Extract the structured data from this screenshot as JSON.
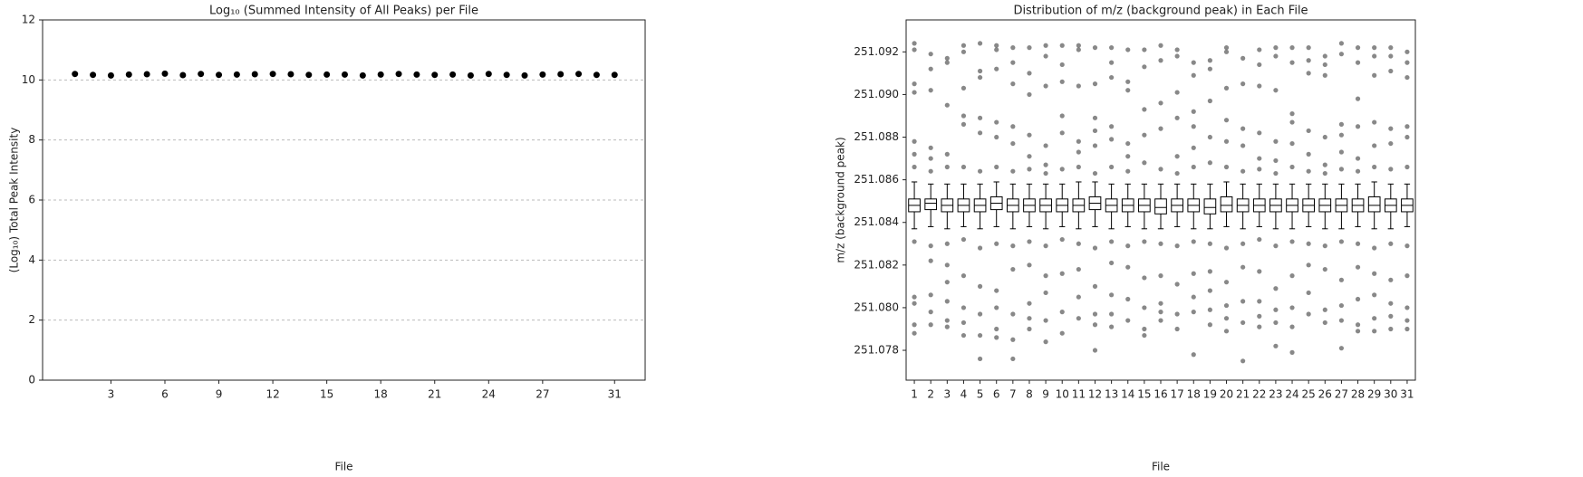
{
  "chart_data": [
    {
      "type": "scatter",
      "title": "Log₁₀ (Summed Intensity of All Peaks) per File",
      "xlabel": "File",
      "ylabel": "(Log₁₀) Total Peak Intensity",
      "x": [
        1,
        2,
        3,
        4,
        5,
        6,
        7,
        8,
        9,
        10,
        11,
        12,
        13,
        14,
        15,
        16,
        17,
        18,
        19,
        20,
        21,
        22,
        23,
        24,
        25,
        26,
        27,
        28,
        29,
        30,
        31
      ],
      "values": [
        10.2,
        10.17,
        10.15,
        10.18,
        10.19,
        10.21,
        10.16,
        10.2,
        10.17,
        10.18,
        10.19,
        10.2,
        10.19,
        10.17,
        10.18,
        10.18,
        10.15,
        10.18,
        10.2,
        10.18,
        10.17,
        10.18,
        10.15,
        10.2,
        10.17,
        10.15,
        10.18,
        10.19,
        10.2,
        10.17,
        10.17
      ],
      "color": "#000000",
      "xlim": [
        -0.8,
        32.7
      ],
      "ylim": [
        0,
        12
      ],
      "xticks": [
        3,
        6,
        9,
        12,
        15,
        18,
        21,
        24,
        27,
        31
      ],
      "yticks": [
        0,
        2,
        4,
        6,
        8,
        10,
        12
      ],
      "grid": true
    },
    {
      "type": "box",
      "title": "Distribution of m/z (background peak) in Each File",
      "xlabel": "File",
      "ylabel": "m/z (background peak)",
      "categories": [
        "1",
        "2",
        "3",
        "4",
        "5",
        "6",
        "7",
        "8",
        "9",
        "10",
        "11",
        "12",
        "13",
        "14",
        "15",
        "16",
        "17",
        "18",
        "19",
        "20",
        "21",
        "22",
        "23",
        "24",
        "25",
        "26",
        "27",
        "28",
        "29",
        "30",
        "31"
      ],
      "ylim": [
        251.0766,
        251.0935
      ],
      "yticks": [
        251.078,
        {
          "value": 251.08,
          "label": "251.080"
        },
        251.082,
        251.084,
        251.086,
        251.088,
        {
          "value": 251.09,
          "label": "251.090"
        },
        251.092
      ],
      "color": "#555555",
      "boxes": [
        {
          "median": 251.0848,
          "q1": 251.0845,
          "q3": 251.0851,
          "whislo": 251.0837,
          "whishi": 251.0859,
          "fliers": [
            251.0924,
            251.0921,
            251.0905,
            251.0901,
            251.0878,
            251.0872,
            251.0866,
            251.0831,
            251.0805,
            251.0802,
            251.0792,
            251.0788
          ]
        },
        {
          "median": 251.0849,
          "q1": 251.0846,
          "q3": 251.0851,
          "whislo": 251.0838,
          "whishi": 251.0858,
          "fliers": [
            251.0919,
            251.0912,
            251.0902,
            251.0875,
            251.087,
            251.0864,
            251.0829,
            251.0822,
            251.0806,
            251.0798,
            251.0792
          ]
        },
        {
          "median": 251.0848,
          "q1": 251.0845,
          "q3": 251.0851,
          "whislo": 251.0837,
          "whishi": 251.0858,
          "fliers": [
            251.0917,
            251.0915,
            251.0895,
            251.0872,
            251.0866,
            251.083,
            251.082,
            251.0812,
            251.0803,
            251.0794,
            251.0791
          ]
        },
        {
          "median": 251.0848,
          "q1": 251.0845,
          "q3": 251.0851,
          "whislo": 251.0838,
          "whishi": 251.0858,
          "fliers": [
            251.0923,
            251.092,
            251.0903,
            251.089,
            251.0886,
            251.0866,
            251.0832,
            251.0815,
            251.08,
            251.0793,
            251.0787
          ]
        },
        {
          "median": 251.0848,
          "q1": 251.0845,
          "q3": 251.0851,
          "whislo": 251.0837,
          "whishi": 251.0858,
          "fliers": [
            251.0924,
            251.0911,
            251.0908,
            251.0889,
            251.0882,
            251.0864,
            251.0828,
            251.081,
            251.0797,
            251.0787,
            251.0776
          ]
        },
        {
          "median": 251.0849,
          "q1": 251.0846,
          "q3": 251.0852,
          "whislo": 251.0838,
          "whishi": 251.0859,
          "fliers": [
            251.0923,
            251.0921,
            251.0912,
            251.0887,
            251.088,
            251.0866,
            251.083,
            251.0808,
            251.08,
            251.079,
            251.0786
          ]
        },
        {
          "median": 251.0848,
          "q1": 251.0845,
          "q3": 251.0851,
          "whislo": 251.0837,
          "whishi": 251.0858,
          "fliers": [
            251.0922,
            251.0915,
            251.0905,
            251.0885,
            251.0877,
            251.0864,
            251.0829,
            251.0818,
            251.0797,
            251.0785,
            251.0776
          ]
        },
        {
          "median": 251.0848,
          "q1": 251.0845,
          "q3": 251.0851,
          "whislo": 251.0838,
          "whishi": 251.0858,
          "fliers": [
            251.0922,
            251.091,
            251.09,
            251.0881,
            251.0871,
            251.0865,
            251.0831,
            251.082,
            251.0802,
            251.0795,
            251.079
          ]
        },
        {
          "median": 251.0848,
          "q1": 251.0845,
          "q3": 251.0851,
          "whislo": 251.0837,
          "whishi": 251.0858,
          "fliers": [
            251.0923,
            251.0918,
            251.0904,
            251.0876,
            251.0867,
            251.0863,
            251.0829,
            251.0815,
            251.0807,
            251.0794,
            251.0784
          ]
        },
        {
          "median": 251.0848,
          "q1": 251.0845,
          "q3": 251.0851,
          "whislo": 251.0838,
          "whishi": 251.0858,
          "fliers": [
            251.0923,
            251.0914,
            251.0906,
            251.089,
            251.0882,
            251.0865,
            251.0832,
            251.0816,
            251.0798,
            251.0788
          ]
        },
        {
          "median": 251.0848,
          "q1": 251.0845,
          "q3": 251.0851,
          "whislo": 251.0837,
          "whishi": 251.0859,
          "fliers": [
            251.0923,
            251.0921,
            251.0904,
            251.0878,
            251.0873,
            251.0866,
            251.083,
            251.0818,
            251.0805,
            251.0795
          ]
        },
        {
          "median": 251.0849,
          "q1": 251.0846,
          "q3": 251.0852,
          "whislo": 251.0838,
          "whishi": 251.0859,
          "fliers": [
            251.0922,
            251.0905,
            251.0889,
            251.0883,
            251.0876,
            251.0863,
            251.0828,
            251.081,
            251.0797,
            251.0792,
            251.078
          ]
        },
        {
          "median": 251.0848,
          "q1": 251.0845,
          "q3": 251.0851,
          "whislo": 251.0837,
          "whishi": 251.0858,
          "fliers": [
            251.0922,
            251.0915,
            251.0908,
            251.0885,
            251.0879,
            251.0866,
            251.0831,
            251.0821,
            251.0806,
            251.0797,
            251.0791
          ]
        },
        {
          "median": 251.0848,
          "q1": 251.0845,
          "q3": 251.0851,
          "whislo": 251.0838,
          "whishi": 251.0858,
          "fliers": [
            251.0921,
            251.0906,
            251.0902,
            251.0877,
            251.0871,
            251.0864,
            251.0829,
            251.0819,
            251.0804,
            251.0794
          ]
        },
        {
          "median": 251.0848,
          "q1": 251.0845,
          "q3": 251.0851,
          "whislo": 251.0837,
          "whishi": 251.0858,
          "fliers": [
            251.0921,
            251.0913,
            251.0893,
            251.0881,
            251.0868,
            251.0831,
            251.0814,
            251.08,
            251.079,
            251.0787
          ]
        },
        {
          "median": 251.0847,
          "q1": 251.0844,
          "q3": 251.0851,
          "whislo": 251.0837,
          "whishi": 251.0858,
          "fliers": [
            251.0923,
            251.0916,
            251.0896,
            251.0884,
            251.0865,
            251.083,
            251.0815,
            251.0802,
            251.0798,
            251.0794
          ]
        },
        {
          "median": 251.0848,
          "q1": 251.0845,
          "q3": 251.0851,
          "whislo": 251.0838,
          "whishi": 251.0858,
          "fliers": [
            251.0921,
            251.0918,
            251.0901,
            251.0889,
            251.0871,
            251.0863,
            251.0829,
            251.0811,
            251.0797,
            251.079
          ]
        },
        {
          "median": 251.0848,
          "q1": 251.0845,
          "q3": 251.0851,
          "whislo": 251.0837,
          "whishi": 251.0858,
          "fliers": [
            251.0915,
            251.0909,
            251.0892,
            251.0885,
            251.0875,
            251.0866,
            251.0831,
            251.0816,
            251.0805,
            251.0798,
            251.0778
          ]
        },
        {
          "median": 251.0847,
          "q1": 251.0844,
          "q3": 251.0851,
          "whislo": 251.0837,
          "whishi": 251.0858,
          "fliers": [
            251.0916,
            251.0912,
            251.0897,
            251.088,
            251.0868,
            251.083,
            251.0817,
            251.0808,
            251.0799,
            251.0792
          ]
        },
        {
          "median": 251.0848,
          "q1": 251.0845,
          "q3": 251.0852,
          "whislo": 251.0838,
          "whishi": 251.0859,
          "fliers": [
            251.0922,
            251.092,
            251.0903,
            251.0888,
            251.0878,
            251.0866,
            251.0828,
            251.0812,
            251.0801,
            251.0795,
            251.0789
          ]
        },
        {
          "median": 251.0848,
          "q1": 251.0845,
          "q3": 251.0851,
          "whislo": 251.0837,
          "whishi": 251.0858,
          "fliers": [
            251.0917,
            251.0905,
            251.0884,
            251.0876,
            251.0864,
            251.083,
            251.0819,
            251.0803,
            251.0793,
            251.0775
          ]
        },
        {
          "median": 251.0848,
          "q1": 251.0845,
          "q3": 251.0851,
          "whislo": 251.0838,
          "whishi": 251.0858,
          "fliers": [
            251.0921,
            251.0914,
            251.0904,
            251.0882,
            251.087,
            251.0865,
            251.0832,
            251.0817,
            251.0803,
            251.0796,
            251.0791
          ]
        },
        {
          "median": 251.0848,
          "q1": 251.0845,
          "q3": 251.0851,
          "whislo": 251.0837,
          "whishi": 251.0858,
          "fliers": [
            251.0922,
            251.0918,
            251.0902,
            251.0878,
            251.0869,
            251.0863,
            251.0829,
            251.0809,
            251.0799,
            251.0793,
            251.0782
          ]
        },
        {
          "median": 251.0848,
          "q1": 251.0845,
          "q3": 251.0851,
          "whislo": 251.0837,
          "whishi": 251.0858,
          "fliers": [
            251.0922,
            251.0915,
            251.0891,
            251.0887,
            251.0877,
            251.0866,
            251.0831,
            251.0815,
            251.08,
            251.0791,
            251.0779
          ]
        },
        {
          "median": 251.0848,
          "q1": 251.0845,
          "q3": 251.0851,
          "whislo": 251.0838,
          "whishi": 251.0858,
          "fliers": [
            251.0922,
            251.0916,
            251.091,
            251.0883,
            251.0872,
            251.0864,
            251.083,
            251.082,
            251.0807,
            251.0797
          ]
        },
        {
          "median": 251.0848,
          "q1": 251.0845,
          "q3": 251.0851,
          "whislo": 251.0837,
          "whishi": 251.0858,
          "fliers": [
            251.0918,
            251.0914,
            251.0909,
            251.088,
            251.0867,
            251.0863,
            251.0829,
            251.0818,
            251.0799,
            251.0793
          ]
        },
        {
          "median": 251.0848,
          "q1": 251.0845,
          "q3": 251.0851,
          "whislo": 251.0837,
          "whishi": 251.0858,
          "fliers": [
            251.0924,
            251.0919,
            251.0886,
            251.0881,
            251.0873,
            251.0865,
            251.0831,
            251.0813,
            251.0801,
            251.0794,
            251.0781
          ]
        },
        {
          "median": 251.0848,
          "q1": 251.0845,
          "q3": 251.0851,
          "whislo": 251.0838,
          "whishi": 251.0858,
          "fliers": [
            251.0922,
            251.0915,
            251.0898,
            251.0885,
            251.087,
            251.0864,
            251.083,
            251.0819,
            251.0804,
            251.0792,
            251.0789
          ]
        },
        {
          "median": 251.0848,
          "q1": 251.0845,
          "q3": 251.0852,
          "whislo": 251.0837,
          "whishi": 251.0859,
          "fliers": [
            251.0922,
            251.0918,
            251.0909,
            251.0887,
            251.0876,
            251.0866,
            251.0828,
            251.0816,
            251.0806,
            251.0795,
            251.0789
          ]
        },
        {
          "median": 251.0848,
          "q1": 251.0845,
          "q3": 251.0851,
          "whislo": 251.0837,
          "whishi": 251.0858,
          "fliers": [
            251.0922,
            251.0918,
            251.0911,
            251.0884,
            251.0877,
            251.0865,
            251.083,
            251.0813,
            251.0802,
            251.0796,
            251.079
          ]
        },
        {
          "median": 251.0848,
          "q1": 251.0845,
          "q3": 251.0851,
          "whislo": 251.0838,
          "whishi": 251.0858,
          "fliers": [
            251.092,
            251.0915,
            251.0908,
            251.0885,
            251.088,
            251.0866,
            251.0829,
            251.0815,
            251.08,
            251.0794,
            251.079
          ]
        }
      ]
    }
  ]
}
